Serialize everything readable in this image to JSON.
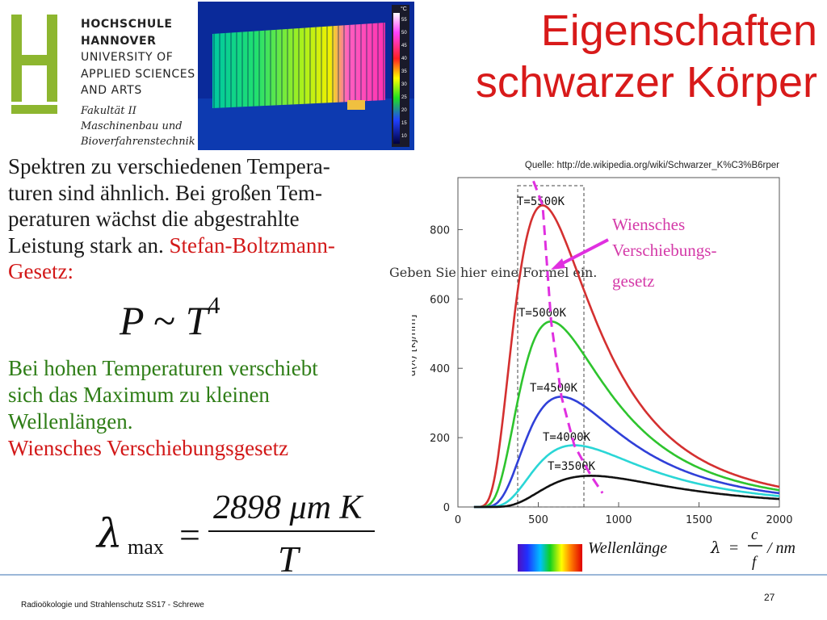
{
  "logo": {
    "lines": [
      "HOCHSCHULE",
      "HANNOVER",
      "UNIVERSITY OF",
      "APPLIED SCIENCES",
      "AND ARTS"
    ],
    "faculty": [
      "Fakultät II",
      "Maschinenbau und",
      "Bioverfahrenstechnik"
    ],
    "brand_color": "#8db62f"
  },
  "thermal_image": {
    "scale_unit": "°C",
    "scale_ticks": [
      "55",
      "50",
      "45",
      "40",
      "35",
      "30",
      "25",
      "20",
      "15",
      "10"
    ]
  },
  "title": [
    "Eigenschaften",
    "schwarzer Körper"
  ],
  "para1": {
    "lines": [
      "Spektren zu verschiedenen Tempera-",
      "turen sind ähnlich. Bei großen Tem-",
      "peraturen wächst die abgestrahlte",
      "Leistung stark an."
    ],
    "highlight": "Stefan-Boltzmann-",
    "highlight2": "Gesetz:"
  },
  "formula_stefan": {
    "P": "P",
    "sim": "~",
    "T": "T",
    "exp": "4"
  },
  "placeholder": "Geben Sie hier eine Formel ein.",
  "para2": {
    "lines": [
      "Bei hohen Temperaturen verschiebt",
      "sich das Maximum zu kleinen",
      "Wellenlängen."
    ],
    "law": "Wiensches Verschiebungsgesetz"
  },
  "formula_wien": {
    "lambda": "λ",
    "sub": "max",
    "eq": "=",
    "num": "2898 μm K",
    "den": "T"
  },
  "chart_data": {
    "type": "line",
    "source": "Quelle: http://de.wikipedia.org/wiki/Schwarzer_K%C3%B6rper",
    "ylabel": "u(λ)  [kJ/nm]",
    "xlabel": "Wellenlänge",
    "xlabel_formula": {
      "lambda": "λ",
      "eq": "=",
      "num": "c",
      "den": "f",
      "unit": "/ nm"
    },
    "xlim": [
      0,
      2000
    ],
    "ylim": [
      0,
      950
    ],
    "xticks": [
      "0",
      "500",
      "1000",
      "1500",
      "2000"
    ],
    "yticks": [
      "0",
      "200",
      "400",
      "600",
      "800"
    ],
    "annotation": [
      "Wiensches",
      "Verschiebungs-",
      "gesetz"
    ],
    "series": [
      {
        "name": "T=5500K",
        "color": "#d43030",
        "peak_x": 527,
        "peak_y": 870
      },
      {
        "name": "T=5000K",
        "color": "#2ec42e",
        "peak_x": 580,
        "peak_y": 535
      },
      {
        "name": "T=4500K",
        "color": "#3040d8",
        "peak_x": 644,
        "peak_y": 318
      },
      {
        "name": "T=4000K",
        "color": "#2ad6d6",
        "peak_x": 724,
        "peak_y": 178
      },
      {
        "name": "T=3500K",
        "color": "#111111",
        "peak_x": 828,
        "peak_y": 90
      }
    ],
    "visible_band": [
      380,
      780
    ]
  },
  "footer": {
    "text": "Radioökologie und Strahlenschutz SS17 - Schrewe",
    "page": "27"
  }
}
